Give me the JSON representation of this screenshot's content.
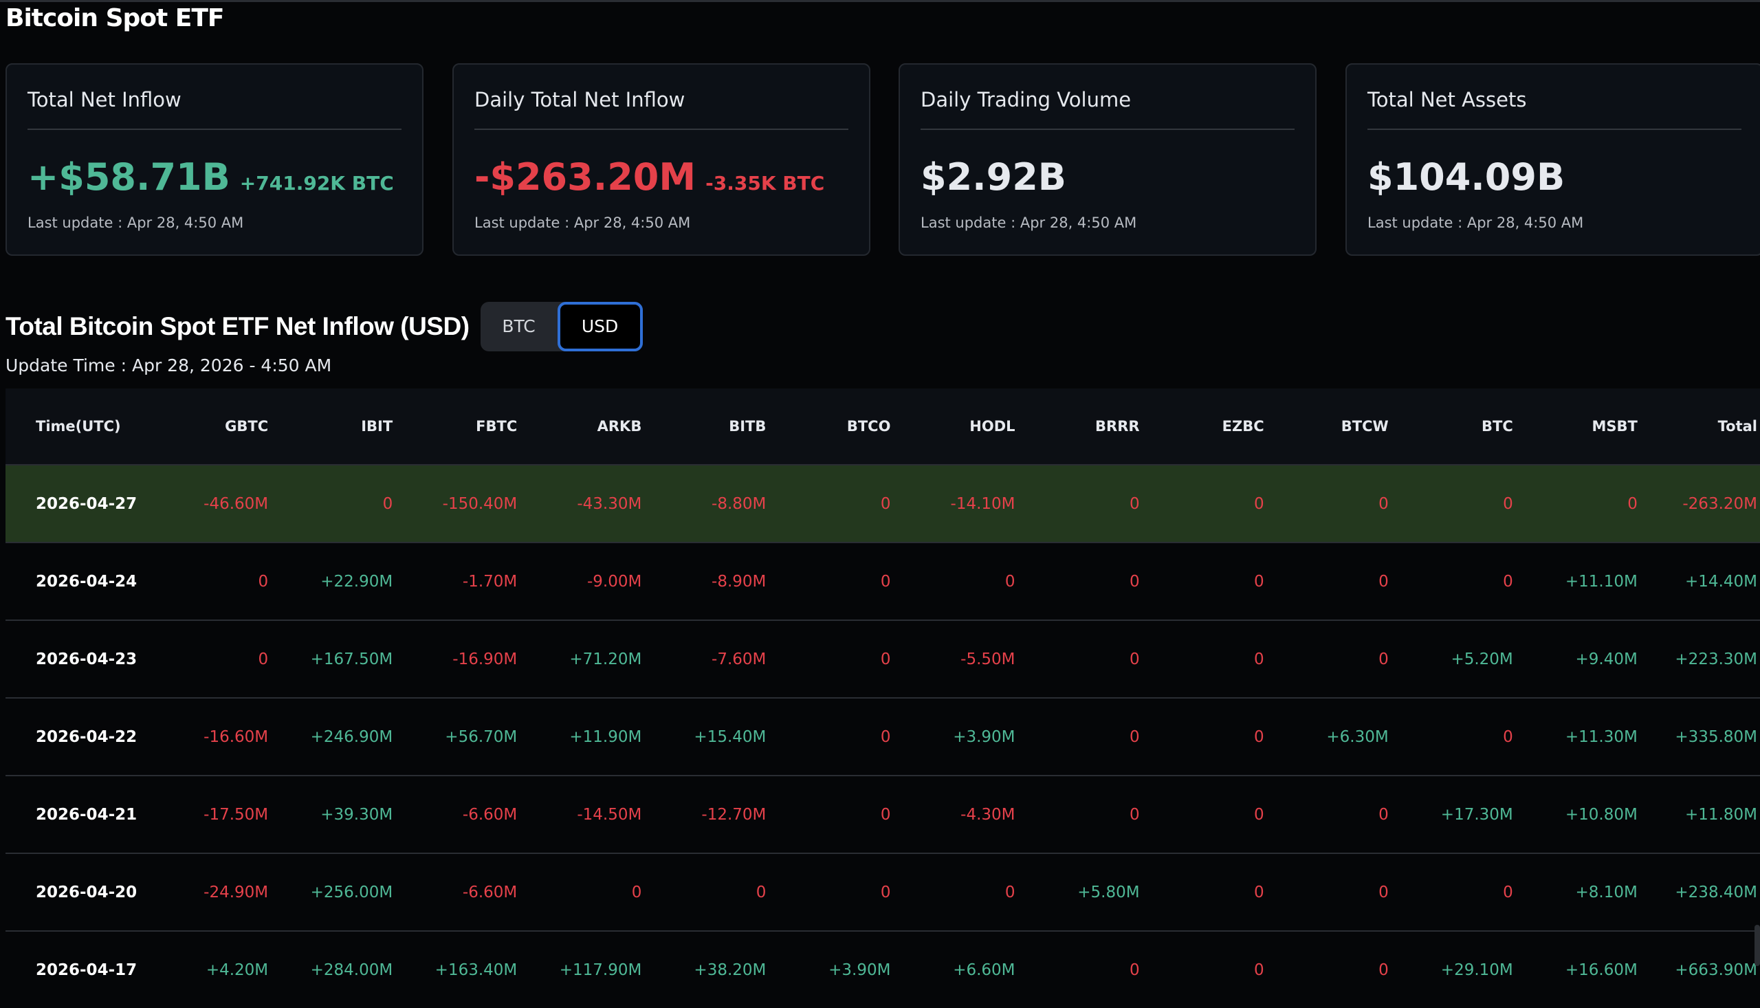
{
  "page_title": "Bitcoin Spot ETF",
  "colors": {
    "positive": "#4fb896",
    "negative": "#e5414a",
    "highlight_row": "#23381e",
    "toggle_active_border": "#2f6fd6"
  },
  "cards": [
    {
      "title": "Total Net Inflow",
      "value": "+$58.71B",
      "sub": "+741.92K BTC",
      "tone": "green",
      "update": "Last update : Apr 28, 4:50 AM"
    },
    {
      "title": "Daily Total Net Inflow",
      "value": "-$263.20M",
      "sub": "-3.35K BTC",
      "tone": "red",
      "update": "Last update : Apr 28, 4:50 AM"
    },
    {
      "title": "Daily Trading Volume",
      "value": "$2.92B",
      "sub": "",
      "tone": "white",
      "update": "Last update : Apr 28, 4:50 AM"
    },
    {
      "title": "Total Net Assets",
      "value": "$104.09B",
      "sub": "",
      "tone": "white",
      "update": "Last update : Apr 28, 4:50 AM"
    }
  ],
  "section": {
    "title": "Total Bitcoin Spot ETF Net Inflow (USD)",
    "toggle": {
      "options": [
        "BTC",
        "USD"
      ],
      "selected": "USD"
    },
    "update_time": "Update Time : Apr 28, 2026 - 4:50 AM"
  },
  "table": {
    "columns": [
      "Time(UTC)",
      "GBTC",
      "IBIT",
      "FBTC",
      "ARKB",
      "BITB",
      "BTCO",
      "HODL",
      "BRRR",
      "EZBC",
      "BTCW",
      "BTC",
      "MSBT",
      "Total"
    ],
    "rows": [
      [
        "2026-04-27",
        "-46.60M",
        "0",
        "-150.40M",
        "-43.30M",
        "-8.80M",
        "0",
        "-14.10M",
        "0",
        "0",
        "0",
        "0",
        "0",
        "-263.20M"
      ],
      [
        "2026-04-24",
        "0",
        "+22.90M",
        "-1.70M",
        "-9.00M",
        "-8.90M",
        "0",
        "0",
        "0",
        "0",
        "0",
        "0",
        "+11.10M",
        "+14.40M"
      ],
      [
        "2026-04-23",
        "0",
        "+167.50M",
        "-16.90M",
        "+71.20M",
        "-7.60M",
        "0",
        "-5.50M",
        "0",
        "0",
        "0",
        "+5.20M",
        "+9.40M",
        "+223.30M"
      ],
      [
        "2026-04-22",
        "-16.60M",
        "+246.90M",
        "+56.70M",
        "+11.90M",
        "+15.40M",
        "0",
        "+3.90M",
        "0",
        "0",
        "+6.30M",
        "0",
        "+11.30M",
        "+335.80M"
      ],
      [
        "2026-04-21",
        "-17.50M",
        "+39.30M",
        "-6.60M",
        "-14.50M",
        "-12.70M",
        "0",
        "-4.30M",
        "0",
        "0",
        "0",
        "+17.30M",
        "+10.80M",
        "+11.80M"
      ],
      [
        "2026-04-20",
        "-24.90M",
        "+256.00M",
        "-6.60M",
        "0",
        "0",
        "0",
        "0",
        "+5.80M",
        "0",
        "0",
        "0",
        "+8.10M",
        "+238.40M"
      ],
      [
        "2026-04-17",
        "+4.20M",
        "+284.00M",
        "+163.40M",
        "+117.90M",
        "+38.20M",
        "+3.90M",
        "+6.60M",
        "0",
        "0",
        "0",
        "+29.10M",
        "+16.60M",
        "+663.90M"
      ]
    ],
    "highlighted_row": 0
  }
}
